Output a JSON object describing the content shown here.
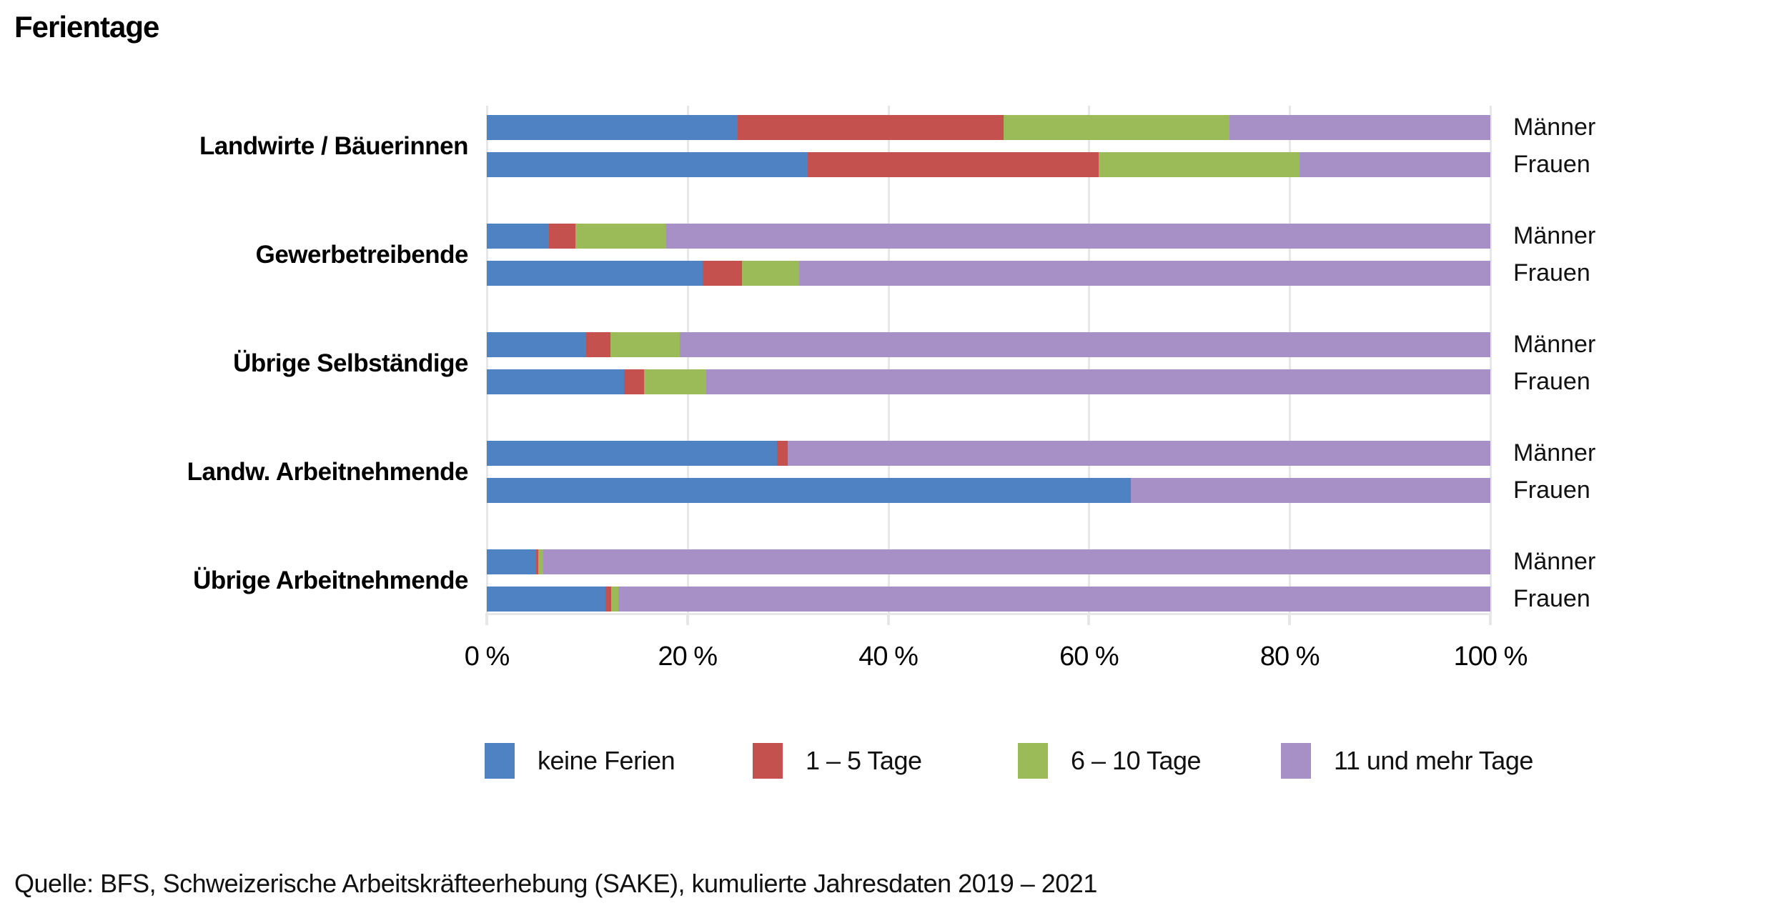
{
  "title": "Ferientage",
  "source": "Quelle: BFS, Schweizerische Arbeitskräfteerhebung (SAKE), kumulierte Jahresdaten 2019 – 2021",
  "colors": {
    "keine_ferien": "#4e82c2",
    "tage_1_5": "#c5514e",
    "tage_6_10": "#9bba58",
    "tage_11_mehr": "#a690c5",
    "grid": "#e7e7e7"
  },
  "chart_data": {
    "type": "bar",
    "orientation": "horizontal",
    "stacked": true,
    "unit": "%",
    "xlim": [
      0,
      100
    ],
    "grid": true,
    "legend_position": "bottom",
    "x_tick_values": [
      0,
      20,
      40,
      60,
      80,
      100
    ],
    "x_tick_labels": [
      "0 %",
      "20 %",
      "40 %",
      "60 %",
      "80 %",
      "100 %"
    ],
    "categories": [
      "Landwirte / Bäuerinnen",
      "Gewerbetreibende",
      "Übrige Selbständige",
      "Landw. Arbeitnehmende",
      "Übrige Arbeitnehmende"
    ],
    "row_labels": [
      "Männer",
      "Frauen"
    ],
    "row_order_note": "values arrays hold one entry per bar: Männer then Frauen for each category, top to bottom",
    "series": [
      {
        "name": "keine Ferien",
        "color": "#4e82c2",
        "values": [
          25,
          32,
          6.2,
          21.5,
          9.9,
          13.7,
          28.9,
          64.2,
          4.9,
          11.8
        ]
      },
      {
        "name": "1 – 5 Tage",
        "color": "#c5514e",
        "values": [
          26.5,
          29,
          2.6,
          3.9,
          2.4,
          2.0,
          1.1,
          0,
          0.2,
          0.6
        ]
      },
      {
        "name": "6 – 10 Tage",
        "color": "#9bba58",
        "values": [
          22.5,
          20,
          9.1,
          5.7,
          6.9,
          6.2,
          0,
          0,
          0.5,
          0.7
        ]
      },
      {
        "name": "11 und mehr Tage",
        "color": "#a690c5",
        "values": [
          26,
          19,
          82.1,
          68.9,
          80.8,
          78.1,
          70,
          35.8,
          94.4,
          86.9
        ]
      }
    ]
  }
}
